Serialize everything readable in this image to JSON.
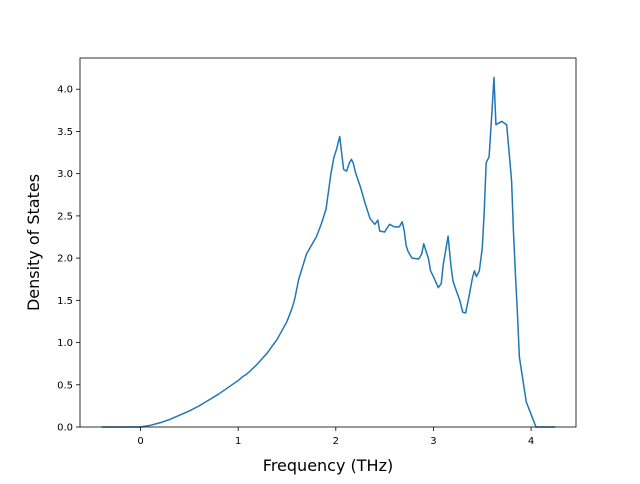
{
  "chart_data": {
    "type": "line",
    "title": "",
    "xlabel": "Frequency (THz)",
    "ylabel": "Density of States",
    "xlim": [
      -0.62,
      4.46
    ],
    "ylim": [
      0.0,
      4.37
    ],
    "x_ticks": [
      0,
      1,
      2,
      3,
      4
    ],
    "x_tick_labels": [
      "0",
      "1",
      "2",
      "3",
      "4"
    ],
    "y_ticks": [
      0.0,
      0.5,
      1.0,
      1.5,
      2.0,
      2.5,
      3.0,
      3.5,
      4.0
    ],
    "y_tick_labels": [
      "0.0",
      "0.5",
      "1.0",
      "1.5",
      "2.0",
      "2.5",
      "3.0",
      "3.5",
      "4.0"
    ],
    "grid": false,
    "legend": "none",
    "series": [
      {
        "color": "#1f77b4",
        "x": [
          -0.39,
          0.0,
          0.1,
          0.2,
          0.3,
          0.4,
          0.5,
          0.6,
          0.7,
          0.8,
          0.9,
          1.0,
          1.05,
          1.08,
          1.12,
          1.2,
          1.3,
          1.4,
          1.5,
          1.55,
          1.58,
          1.62,
          1.7,
          1.8,
          1.85,
          1.9,
          1.92,
          1.95,
          1.98,
          2.01,
          2.04,
          2.08,
          2.11,
          2.14,
          2.16,
          2.18,
          2.2,
          2.25,
          2.3,
          2.35,
          2.4,
          2.43,
          2.45,
          2.5,
          2.55,
          2.6,
          2.65,
          2.68,
          2.7,
          2.72,
          2.74,
          2.78,
          2.85,
          2.88,
          2.9,
          2.95,
          2.97,
          3.0,
          3.05,
          3.08,
          3.1,
          3.15,
          3.18,
          3.2,
          3.22,
          3.27,
          3.3,
          3.33,
          3.37,
          3.4,
          3.42,
          3.44,
          3.47,
          3.5,
          3.52,
          3.54,
          3.57,
          3.6,
          3.62,
          3.64,
          3.7,
          3.75,
          3.8,
          3.82,
          3.84,
          3.86,
          3.88,
          3.95,
          4.05,
          4.15,
          4.24
        ],
        "y": [
          0.0,
          0.0,
          0.02,
          0.05,
          0.09,
          0.14,
          0.19,
          0.25,
          0.32,
          0.39,
          0.47,
          0.55,
          0.6,
          0.62,
          0.66,
          0.75,
          0.88,
          1.04,
          1.25,
          1.4,
          1.52,
          1.75,
          2.05,
          2.25,
          2.4,
          2.58,
          2.75,
          3.0,
          3.19,
          3.3,
          3.44,
          3.05,
          3.03,
          3.13,
          3.17,
          3.12,
          3.02,
          2.85,
          2.65,
          2.47,
          2.4,
          2.45,
          2.32,
          2.31,
          2.4,
          2.37,
          2.37,
          2.43,
          2.33,
          2.15,
          2.08,
          2.0,
          1.99,
          2.05,
          2.17,
          1.99,
          1.85,
          1.78,
          1.65,
          1.7,
          1.92,
          2.26,
          1.9,
          1.73,
          1.66,
          1.5,
          1.36,
          1.35,
          1.58,
          1.77,
          1.85,
          1.78,
          1.85,
          2.12,
          2.55,
          3.13,
          3.2,
          3.75,
          4.14,
          3.58,
          3.62,
          3.58,
          2.92,
          2.3,
          1.8,
          1.35,
          0.83,
          0.3,
          0.0,
          0.0,
          0.0
        ]
      }
    ]
  }
}
